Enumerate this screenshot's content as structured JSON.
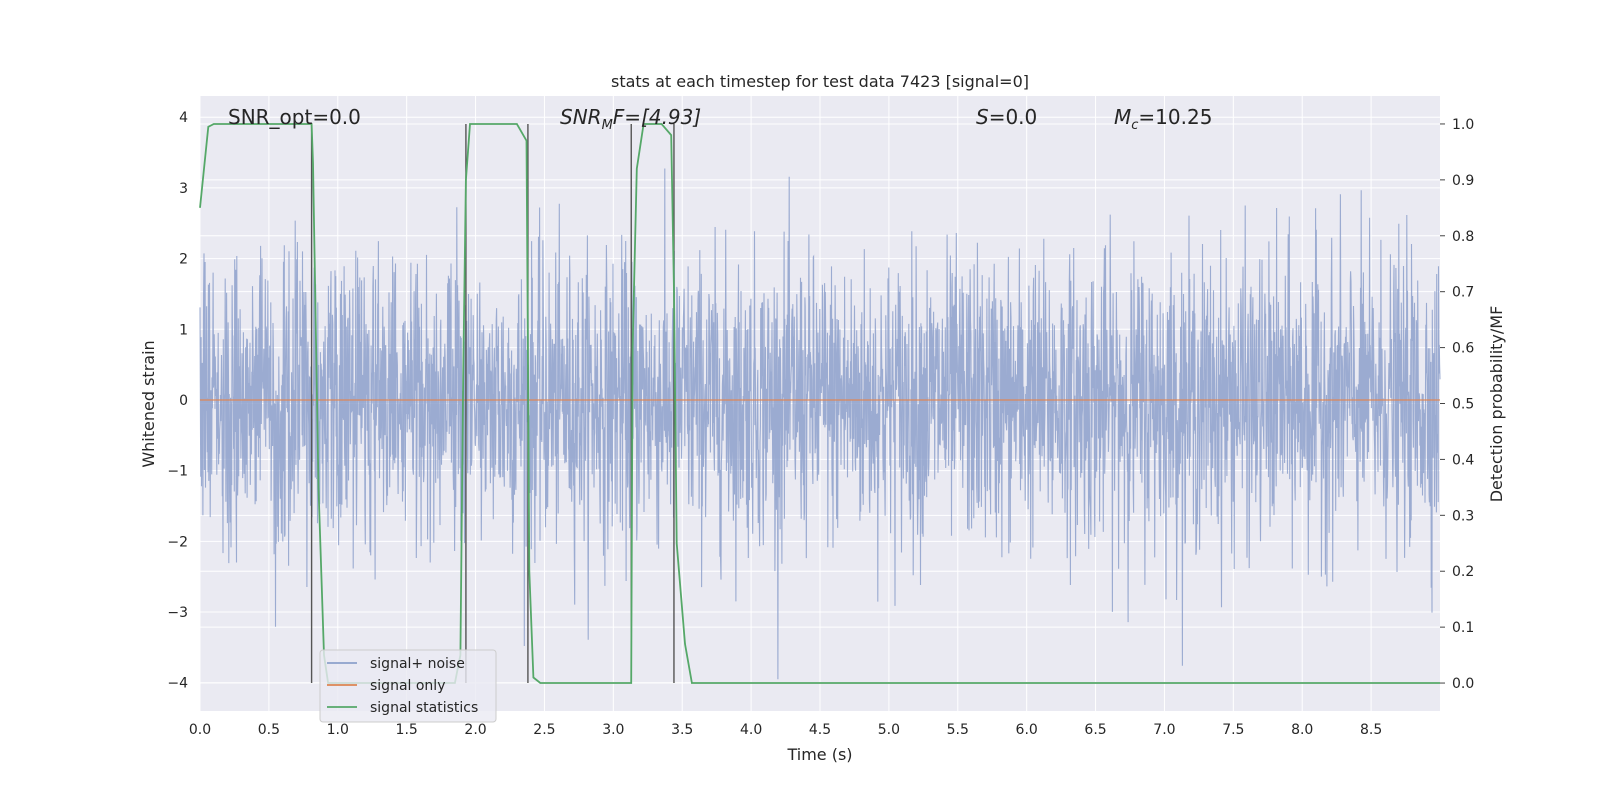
{
  "chart_data": {
    "type": "line",
    "title": "stats at each timestep for test data 7423 [signal=0]",
    "xlabel": "Time (s)",
    "ylabel": "Whitened strain",
    "y2label": "Detection probability/MF",
    "xlim": [
      0,
      9.0
    ],
    "ylim": [
      -4.4,
      4.3
    ],
    "y2lim": [
      -0.05,
      1.05
    ],
    "xticks": [
      "0.0",
      "0.5",
      "1.0",
      "1.5",
      "2.0",
      "2.5",
      "3.0",
      "3.5",
      "4.0",
      "4.5",
      "5.0",
      "5.5",
      "6.0",
      "6.5",
      "7.0",
      "7.5",
      "8.0",
      "8.5"
    ],
    "yticks": [
      "4",
      "3",
      "2",
      "1",
      "0",
      "−1",
      "−2",
      "−3",
      "−4"
    ],
    "y2ticks": [
      "1.0",
      "0.9",
      "0.8",
      "0.7",
      "0.6",
      "0.5",
      "0.4",
      "0.3",
      "0.2",
      "0.1",
      "0.0"
    ],
    "grid": true,
    "legend_position": "lower-left",
    "series": [
      {
        "name": "signal+ noise",
        "color": "#8da0cb",
        "description_range": [
          -4.0,
          4.0
        ]
      },
      {
        "name": "signal only",
        "color": "#dd8452",
        "values_constant": 0.0
      },
      {
        "name": "signal statistics",
        "color": "#55a868",
        "axis": "right",
        "x": [
          0.0,
          0.06,
          0.1,
          0.3,
          0.5,
          0.7,
          0.8,
          0.81,
          0.82,
          0.86,
          0.9,
          0.93,
          0.97,
          1.0,
          1.05,
          1.1,
          1.2,
          1.4,
          1.6,
          1.7,
          1.8,
          1.85,
          1.89,
          1.91,
          1.93,
          1.96,
          2.0,
          2.1,
          2.2,
          2.3,
          2.37,
          2.38,
          2.39,
          2.42,
          2.47,
          2.55,
          2.7,
          2.9,
          3.1,
          3.13,
          3.14,
          3.17,
          3.22,
          3.28,
          3.35,
          3.42,
          3.44,
          3.46,
          3.52,
          3.57,
          3.7,
          4.0,
          5.0,
          6.0,
          7.0,
          8.0,
          9.0
        ],
        "y": [
          0.85,
          0.995,
          1.0,
          1.0,
          1.0,
          1.0,
          1.0,
          1.0,
          0.93,
          0.35,
          0.05,
          0.0,
          0.0,
          0.0,
          0.0,
          0.0,
          0.0,
          0.0,
          0.0,
          0.0,
          0.0,
          0.0,
          0.05,
          0.55,
          0.9,
          1.0,
          1.0,
          1.0,
          1.0,
          1.0,
          0.97,
          0.6,
          0.2,
          0.01,
          0.0,
          0.0,
          0.0,
          0.0,
          0.0,
          0.0,
          0.6,
          0.92,
          1.0,
          1.0,
          1.0,
          0.98,
          0.7,
          0.25,
          0.07,
          0.0,
          0.0,
          0.0,
          0.0,
          0.0,
          0.0,
          0.0,
          0.0
        ]
      }
    ],
    "vlines_x": [
      0.81,
      1.93,
      2.38,
      3.13,
      3.44
    ],
    "annotations": {
      "snr_opt": "SNR_opt=0.0",
      "snr_mf_base": "SNR",
      "snr_mf_sub": "M",
      "snr_mf_rest": "F=[4.93]",
      "s_italic": "S",
      "s_rest": "=0.0",
      "mc_base": "M",
      "mc_sub": "c",
      "mc_rest": "=10.25"
    },
    "colors": {
      "background": "#eaeaf2",
      "grid": "#ffffff",
      "noise": "#8da0cb",
      "signal_only": "#dd8452",
      "statistics": "#55a868",
      "vlines": "#555555"
    }
  }
}
